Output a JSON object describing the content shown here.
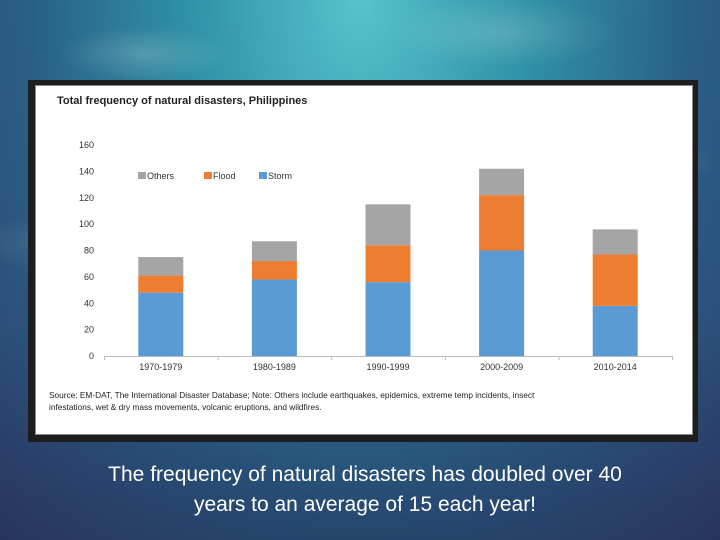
{
  "chart_data": {
    "type": "bar",
    "stacked": true,
    "title": "Total frequency of natural disasters, Philippines",
    "categories": [
      "1970-1979",
      "1980-1989",
      "1990-1999",
      "2000-2009",
      "2010-2014"
    ],
    "series": [
      {
        "name": "Storm",
        "values": [
          48,
          58,
          56,
          80,
          38
        ],
        "color": "#5b9bd5"
      },
      {
        "name": "Flood",
        "values": [
          13,
          14,
          28,
          42,
          39
        ],
        "color": "#ed7d31"
      },
      {
        "name": "Others",
        "values": [
          14,
          15,
          31,
          20,
          19
        ],
        "color": "#a5a5a5"
      }
    ],
    "legend_order": [
      "Others",
      "Flood",
      "Storm"
    ],
    "yticks": [
      0,
      20,
      40,
      60,
      80,
      100,
      120,
      140,
      160
    ],
    "ylim": [
      0,
      160
    ],
    "grid": false,
    "source_line1": "Source: EM-DAT, The International Disaster Database; Note: Others include earthquakes, epidemics, extreme temp incidents, insect",
    "source_line2": "infestations, wet & dry mass movements, volcanic eruptions, and wildfires."
  },
  "caption": {
    "line1": "The frequency of natural disasters has doubled over 40",
    "line2": "years to an average of 15 each year!"
  }
}
